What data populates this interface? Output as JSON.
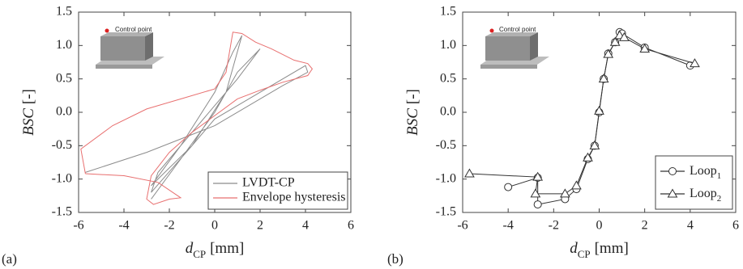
{
  "chart_data": [
    {
      "type": "line",
      "panel_label": "(a)",
      "annotation": "Control point",
      "xlabel_symbol": "d",
      "xlabel_subscript": "CP",
      "xlabel_unit": "[mm]",
      "ylabel_symbol": "BSC",
      "ylabel_unit": "[-]",
      "xlim": [
        -6,
        6
      ],
      "xticks": [
        -6,
        -4,
        -2,
        0,
        2,
        4,
        6
      ],
      "ylim": [
        -1.5,
        1.5
      ],
      "yticks": [
        -1.5,
        {
          "value": -1.0,
          "label": "-1.0"
        },
        -0.5,
        {
          "value": 0.0,
          "label": "0.0"
        },
        0.5,
        {
          "value": 1.0,
          "label": "1.0"
        },
        1.5
      ],
      "legend": "lower right",
      "series": [
        {
          "name": "LVDT-CP",
          "color": "#8c8c8c",
          "marker": "none",
          "x": [
            -2.8,
            -1.5,
            0,
            1,
            2,
            1,
            0,
            -1,
            -2.5,
            -2.8,
            -1,
            0.5,
            1.2,
            0.8,
            0,
            -1.5,
            -2.8,
            -2.5,
            -1,
            0,
            4,
            4.1,
            3,
            0,
            -3,
            -5.7
          ],
          "values": [
            -1.3,
            -0.7,
            0,
            0.6,
            0.95,
            0.5,
            0.1,
            -0.3,
            -0.9,
            -1.2,
            -0.5,
            0.3,
            1.15,
            0.9,
            0.3,
            -0.5,
            -1.1,
            -1.0,
            -0.5,
            -0.1,
            0.7,
            0.6,
            0.4,
            -0.2,
            -0.6,
            -0.9
          ]
        },
        {
          "name": "Envelope hysteresis",
          "color": "#e86f6f",
          "marker": "none",
          "x": [
            -5.7,
            -5.9,
            -4.5,
            -3,
            -1.5,
            0,
            0.5,
            0.8,
            1.2,
            1.8,
            2.5,
            3.5,
            4.1,
            4.3,
            4.1,
            3,
            2,
            1,
            0,
            -1,
            -2,
            -2.8,
            -3.0,
            -2.7,
            -2,
            -1.5,
            -2.5,
            -4,
            -5.7
          ],
          "values": [
            -0.92,
            -0.55,
            -0.2,
            0.05,
            0.2,
            0.35,
            0.6,
            1.2,
            1.18,
            1.05,
            0.95,
            0.78,
            0.73,
            0.65,
            0.55,
            0.45,
            0.33,
            0.2,
            -0.05,
            -0.3,
            -0.6,
            -0.95,
            -1.3,
            -1.38,
            -1.3,
            -1.28,
            -1.05,
            -0.95,
            -0.92
          ]
        }
      ]
    },
    {
      "type": "line",
      "panel_label": "(b)",
      "annotation": "Control point",
      "xlabel_symbol": "d",
      "xlabel_subscript": "CP",
      "xlabel_unit": "[mm]",
      "ylabel_symbol": "BSC",
      "ylabel_unit": "[-]",
      "xlim": [
        -6,
        6
      ],
      "xticks": [
        -6,
        -4,
        -2,
        0,
        2,
        4,
        6
      ],
      "ylim": [
        -1.5,
        1.5
      ],
      "yticks": [
        -1.5,
        {
          "value": -1.0,
          "label": "-1.0"
        },
        -0.5,
        {
          "value": 0.0,
          "label": "0.0"
        },
        0.5,
        {
          "value": 1.0,
          "label": "1.0"
        },
        1.5
      ],
      "legend": "lower right",
      "series": [
        {
          "name": "Loop1",
          "color": "#333333",
          "marker": "circle",
          "x": [
            -4,
            -2.7,
            -2.7,
            -1.5,
            -1,
            -0.5,
            -0.2,
            0,
            0.2,
            0.4,
            0.7,
            0.9,
            1,
            2,
            4
          ],
          "values": [
            -1.12,
            -0.98,
            -1.38,
            -1.3,
            -1.15,
            -0.7,
            -0.5,
            0,
            0.5,
            0.88,
            1.05,
            1.2,
            1.18,
            0.97,
            0.7
          ]
        },
        {
          "name": "Loop2",
          "color": "#333333",
          "marker": "triangle",
          "x": [
            -5.7,
            -2.7,
            -2.8,
            -1.5,
            -1,
            -0.5,
            -0.2,
            0,
            0.2,
            0.4,
            0.7,
            0.9,
            1.1,
            2,
            4.2
          ],
          "values": [
            -0.92,
            -0.97,
            -1.22,
            -1.22,
            -1.1,
            -0.68,
            -0.5,
            0.02,
            0.5,
            0.87,
            1.05,
            1.15,
            1.12,
            0.95,
            0.73
          ]
        }
      ]
    }
  ]
}
